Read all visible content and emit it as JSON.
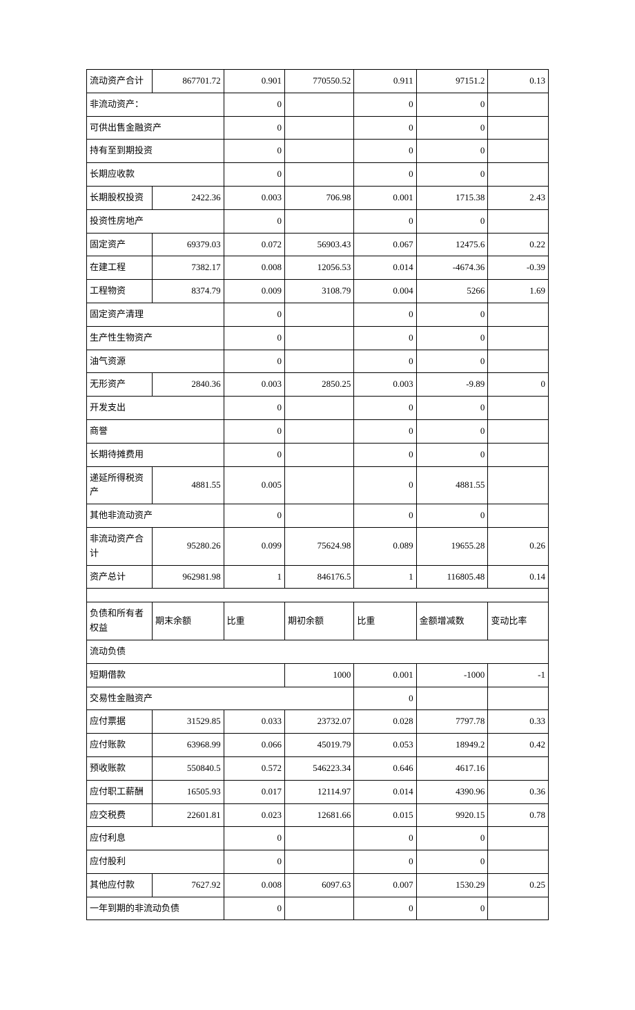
{
  "table": {
    "colors": {
      "border": "#000000",
      "text": "#000000",
      "background": "#ffffff"
    },
    "font_size": 13,
    "column_widths_pct": [
      14.2,
      15.5,
      13.2,
      15,
      13.5,
      15.5,
      13.1
    ],
    "rows": [
      {
        "type": "data",
        "label": "流动资产合计",
        "c2": "867701.72",
        "c3": "0.901",
        "c4": "770550.52",
        "c5": "0.911",
        "c6": "97151.2",
        "c7": "0.13"
      },
      {
        "type": "span2",
        "label": "非流动资产：",
        "c3": "0",
        "c4": "",
        "c5": "0",
        "c6": "0",
        "c7": ""
      },
      {
        "type": "span2",
        "label": "可供出售金融资产",
        "c3": "0",
        "c4": "",
        "c5": "0",
        "c6": "0",
        "c7": ""
      },
      {
        "type": "span2",
        "label": "持有至到期投资",
        "c3": "0",
        "c4": "",
        "c5": "0",
        "c6": "0",
        "c7": ""
      },
      {
        "type": "span2",
        "label": "长期应收款",
        "c3": "0",
        "c4": "",
        "c5": "0",
        "c6": "0",
        "c7": ""
      },
      {
        "type": "data",
        "label": "长期股权投资",
        "c2": "2422.36",
        "c3": "0.003",
        "c4": "706.98",
        "c5": "0.001",
        "c6": "1715.38",
        "c7": "2.43"
      },
      {
        "type": "span2",
        "label": "投资性房地产",
        "c3": "0",
        "c4": "",
        "c5": "0",
        "c6": "0",
        "c7": ""
      },
      {
        "type": "data",
        "label": "固定资产",
        "c2": "69379.03",
        "c3": "0.072",
        "c4": "56903.43",
        "c5": "0.067",
        "c6": "12475.6",
        "c7": "0.22"
      },
      {
        "type": "data",
        "label": "在建工程",
        "c2": "7382.17",
        "c3": "0.008",
        "c4": "12056.53",
        "c5": "0.014",
        "c6": "-4674.36",
        "c7": "-0.39"
      },
      {
        "type": "data",
        "label": "工程物资",
        "c2": "8374.79",
        "c3": "0.009",
        "c4": "3108.79",
        "c5": "0.004",
        "c6": "5266",
        "c7": "1.69"
      },
      {
        "type": "span2",
        "label": "固定资产清理",
        "c3": "0",
        "c4": "",
        "c5": "0",
        "c6": "0",
        "c7": ""
      },
      {
        "type": "span2",
        "label": "生产性生物资产",
        "c3": "0",
        "c4": "",
        "c5": "0",
        "c6": "0",
        "c7": ""
      },
      {
        "type": "span2",
        "label": "油气资源",
        "c3": "0",
        "c4": "",
        "c5": "0",
        "c6": "0",
        "c7": ""
      },
      {
        "type": "data",
        "label": "无形资产",
        "c2": "2840.36",
        "c3": "0.003",
        "c4": "2850.25",
        "c5": "0.003",
        "c6": "-9.89",
        "c7": "0"
      },
      {
        "type": "span2",
        "label": "开发支出",
        "c3": "0",
        "c4": "",
        "c5": "0",
        "c6": "0",
        "c7": ""
      },
      {
        "type": "span2",
        "label": "商誉",
        "c3": "0",
        "c4": "",
        "c5": "0",
        "c6": "0",
        "c7": ""
      },
      {
        "type": "span2",
        "label": "长期待摊费用",
        "c3": "0",
        "c4": "",
        "c5": "0",
        "c6": "0",
        "c7": ""
      },
      {
        "type": "data",
        "label": "递延所得税资产",
        "c2": "4881.55",
        "c3": "0.005",
        "c4": "",
        "c5": "0",
        "c6": "4881.55",
        "c7": ""
      },
      {
        "type": "span2",
        "label": "其他非流动资产",
        "c3": "0",
        "c4": "",
        "c5": "0",
        "c6": "0",
        "c7": ""
      },
      {
        "type": "data",
        "label": "非流动资产合计",
        "c2": "95280.26",
        "c3": "0.099",
        "c4": "75624.98",
        "c5": "0.089",
        "c6": "19655.28",
        "c7": "0.26"
      },
      {
        "type": "data",
        "label": "资产总计",
        "c2": "962981.98",
        "c3": "1",
        "c4": "846176.5",
        "c5": "1",
        "c6": "116805.48",
        "c7": "0.14"
      },
      {
        "type": "spacer"
      },
      {
        "type": "header",
        "label": "负债和所有者权益",
        "c2": "期末余额",
        "c3": "比重",
        "c4": "期初余额",
        "c5": "比重",
        "c6": "金额增减数",
        "c7": "变动比率"
      },
      {
        "type": "full",
        "label": "流动负债"
      },
      {
        "type": "span3",
        "label": "短期借款",
        "c4": "1000",
        "c5": "0.001",
        "c6": "-1000",
        "c7": "-1"
      },
      {
        "type": "span4",
        "label": "交易性金融资产",
        "c5": "0",
        "c6": "",
        "c7": ""
      },
      {
        "type": "data",
        "label": "应付票据",
        "c2": "31529.85",
        "c3": "0.033",
        "c4": "23732.07",
        "c5": "0.028",
        "c6": "7797.78",
        "c7": "0.33"
      },
      {
        "type": "data",
        "label": "应付账款",
        "c2": "63968.99",
        "c3": "0.066",
        "c4": "45019.79",
        "c5": "0.053",
        "c6": "18949.2",
        "c7": "0.42"
      },
      {
        "type": "data",
        "label": "预收账款",
        "c2": "550840.5",
        "c3": "0.572",
        "c4": "546223.34",
        "c5": "0.646",
        "c6": "4617.16",
        "c7": ""
      },
      {
        "type": "data",
        "label": "应付职工薪酬",
        "c2": "16505.93",
        "c3": "0.017",
        "c4": "12114.97",
        "c5": "0.014",
        "c6": "4390.96",
        "c7": "0.36"
      },
      {
        "type": "data",
        "label": "应交税费",
        "c2": "22601.81",
        "c3": "0.023",
        "c4": "12681.66",
        "c5": "0.015",
        "c6": "9920.15",
        "c7": "0.78"
      },
      {
        "type": "span2",
        "label": "应付利息",
        "c3": "0",
        "c4": "",
        "c5": "0",
        "c6": "0",
        "c7": ""
      },
      {
        "type": "span2",
        "label": "应付股利",
        "c3": "0",
        "c4": "",
        "c5": "0",
        "c6": "0",
        "c7": ""
      },
      {
        "type": "data",
        "label": "其他应付款",
        "c2": "7627.92",
        "c3": "0.008",
        "c4": "6097.63",
        "c5": "0.007",
        "c6": "1530.29",
        "c7": "0.25"
      },
      {
        "type": "span2",
        "label": "一年到期的非流动负债",
        "c3": "0",
        "c4": "",
        "c5": "0",
        "c6": "0",
        "c7": ""
      }
    ]
  }
}
